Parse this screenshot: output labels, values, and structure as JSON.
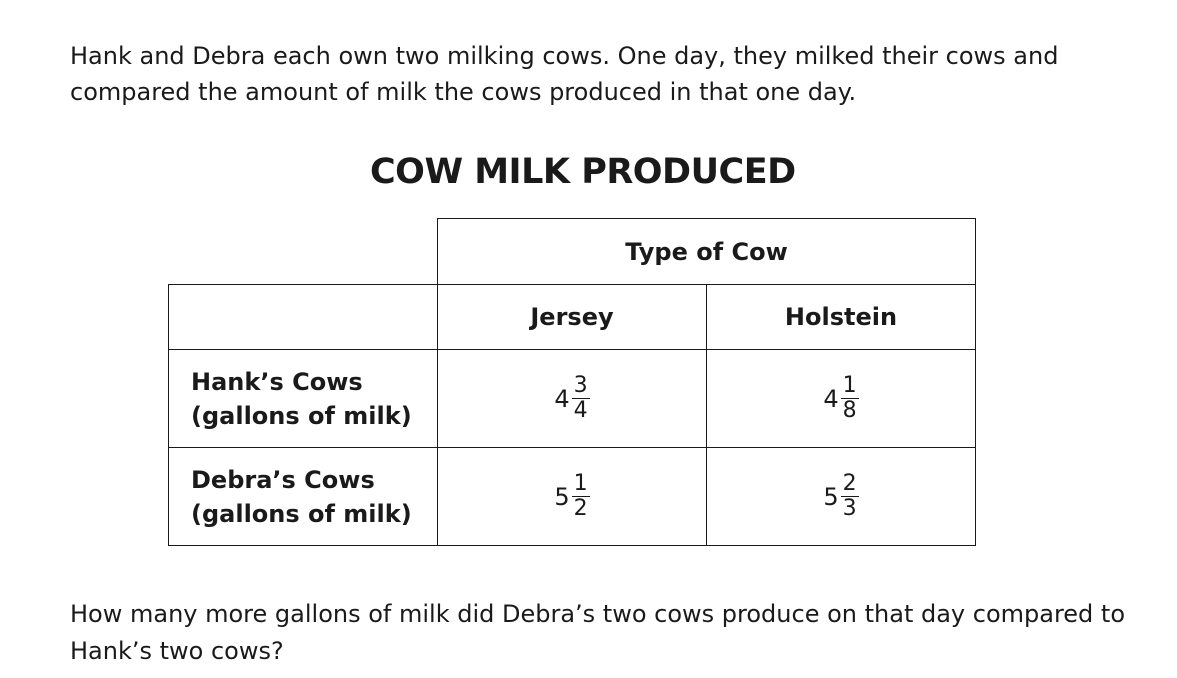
{
  "intro": "Hank and Debra each own two milking cows. One day, they milked their cows and compared the amount of milk the cows produced in that one day.",
  "table": {
    "title": "COW MILK PRODUCED",
    "group_header": "Type of Cow",
    "columns": [
      "Jersey",
      "Holstein"
    ],
    "rows": [
      {
        "label_line1": "Hank’s Cows",
        "label_line2": "(gallons of milk)",
        "values": [
          {
            "whole": "4",
            "num": "3",
            "den": "4"
          },
          {
            "whole": "4",
            "num": "1",
            "den": "8"
          }
        ]
      },
      {
        "label_line1": "Debra’s Cows",
        "label_line2": "(gallons of milk)",
        "values": [
          {
            "whole": "5",
            "num": "1",
            "den": "2"
          },
          {
            "whole": "5",
            "num": "2",
            "den": "3"
          }
        ]
      }
    ]
  },
  "question": "How many more gallons of milk did Debra’s two cows produce on that day compared to Hank’s two cows?"
}
